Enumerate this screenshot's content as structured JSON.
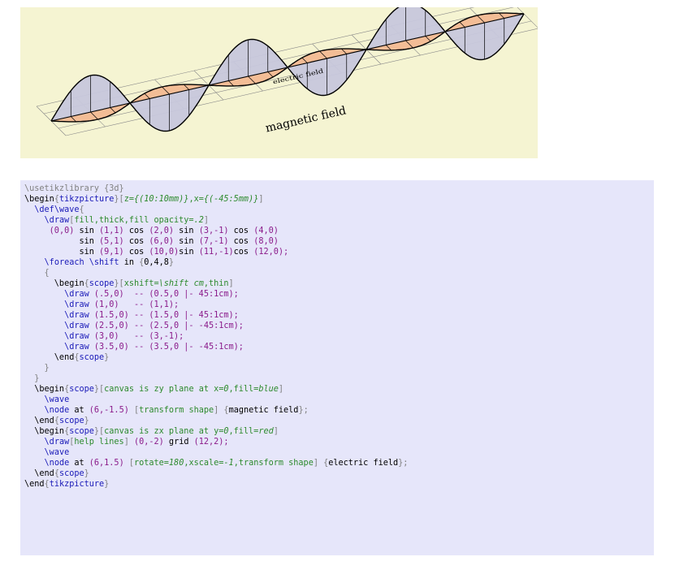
{
  "figure": {
    "labels": {
      "magnetic": "magnetic field",
      "electric": "electric field"
    },
    "colors": {
      "background": "#f5f4d2",
      "blue_fill": "#c7c7dc",
      "red_fill": "#f3bd96",
      "grid": "#888888",
      "outline": "#000000"
    }
  },
  "code": {
    "background": "#e6e6fa",
    "lines": [
      [
        [
          "gray",
          "\\usetikzlibrary {3d}"
        ]
      ],
      [
        [
          "plain",
          "\\begin"
        ],
        [
          "gray",
          "{"
        ],
        [
          "blue",
          "tikzpicture"
        ],
        [
          "gray",
          "}["
        ],
        [
          "green",
          "z="
        ],
        [
          "green-it",
          "{(10:10mm)}"
        ],
        [
          "green",
          ",x="
        ],
        [
          "green-it",
          "{(-45:5mm)}"
        ],
        [
          "gray",
          "]"
        ]
      ],
      [
        [
          "plain",
          "  "
        ],
        [
          "blue",
          "\\def\\wave"
        ],
        [
          "gray",
          "{"
        ]
      ],
      [
        [
          "plain",
          "    "
        ],
        [
          "blue",
          "\\draw"
        ],
        [
          "gray",
          "["
        ],
        [
          "green",
          "fill,thick,fill opacity="
        ],
        [
          "green-it",
          ".2"
        ],
        [
          "gray",
          "]"
        ]
      ],
      [
        [
          "plain",
          "     "
        ],
        [
          "purple",
          "(0,0)"
        ],
        [
          "plain",
          " sin "
        ],
        [
          "purple",
          "(1,1)"
        ],
        [
          "plain",
          " cos "
        ],
        [
          "purple",
          "(2,0)"
        ],
        [
          "plain",
          " sin "
        ],
        [
          "purple",
          "(3,-1)"
        ],
        [
          "plain",
          " cos "
        ],
        [
          "purple",
          "(4,0)"
        ]
      ],
      [
        [
          "plain",
          "           sin "
        ],
        [
          "purple",
          "(5,1)"
        ],
        [
          "plain",
          " cos "
        ],
        [
          "purple",
          "(6,0)"
        ],
        [
          "plain",
          " sin "
        ],
        [
          "purple",
          "(7,-1)"
        ],
        [
          "plain",
          " cos "
        ],
        [
          "purple",
          "(8,0)"
        ]
      ],
      [
        [
          "plain",
          "           sin "
        ],
        [
          "purple",
          "(9,1)"
        ],
        [
          "plain",
          " cos "
        ],
        [
          "purple",
          "(10,0)"
        ],
        [
          "plain",
          "sin "
        ],
        [
          "purple",
          "(11,-1)"
        ],
        [
          "plain",
          "cos "
        ],
        [
          "purple",
          "(12,0);"
        ]
      ],
      [
        [
          "plain",
          "    "
        ],
        [
          "blue",
          "\\foreach \\shift"
        ],
        [
          "plain",
          " in "
        ],
        [
          "gray",
          "{"
        ],
        [
          "plain",
          "0,4,8"
        ],
        [
          "gray",
          "}"
        ]
      ],
      [
        [
          "gray",
          "    {"
        ]
      ],
      [
        [
          "plain",
          "      \\begin"
        ],
        [
          "gray",
          "{"
        ],
        [
          "blue",
          "scope"
        ],
        [
          "gray",
          "}["
        ],
        [
          "green",
          "xshift="
        ],
        [
          "green-it",
          "\\shift cm"
        ],
        [
          "green",
          ",thin"
        ],
        [
          "gray",
          "]"
        ]
      ],
      [
        [
          "plain",
          "        "
        ],
        [
          "blue",
          "\\draw"
        ],
        [
          "purple",
          " (.5,0)  -- (0.5,0 |- 45:1cm);"
        ]
      ],
      [
        [
          "plain",
          "        "
        ],
        [
          "blue",
          "\\draw"
        ],
        [
          "purple",
          " (1,0)   -- (1,1);"
        ]
      ],
      [
        [
          "plain",
          "        "
        ],
        [
          "blue",
          "\\draw"
        ],
        [
          "purple",
          " (1.5,0) -- (1.5,0 |- 45:1cm);"
        ]
      ],
      [
        [
          "plain",
          "        "
        ],
        [
          "blue",
          "\\draw"
        ],
        [
          "purple",
          " (2.5,0) -- (2.5,0 |- -45:1cm);"
        ]
      ],
      [
        [
          "plain",
          "        "
        ],
        [
          "blue",
          "\\draw"
        ],
        [
          "purple",
          " (3,0)   -- (3,-1);"
        ]
      ],
      [
        [
          "plain",
          "        "
        ],
        [
          "blue",
          "\\draw"
        ],
        [
          "purple",
          " (3.5,0) -- (3.5,0 |- -45:1cm);"
        ]
      ],
      [
        [
          "plain",
          "      \\end"
        ],
        [
          "gray",
          "{"
        ],
        [
          "blue",
          "scope"
        ],
        [
          "gray",
          "}"
        ]
      ],
      [
        [
          "gray",
          "    }"
        ]
      ],
      [
        [
          "gray",
          "  }"
        ]
      ],
      [
        [
          "plain",
          "  \\begin"
        ],
        [
          "gray",
          "{"
        ],
        [
          "blue",
          "scope"
        ],
        [
          "gray",
          "}["
        ],
        [
          "green",
          "canvas is zy plane at x="
        ],
        [
          "green-it",
          "0"
        ],
        [
          "green",
          ",fill="
        ],
        [
          "green-it",
          "blue"
        ],
        [
          "gray",
          "]"
        ]
      ],
      [
        [
          "plain",
          "    "
        ],
        [
          "blue",
          "\\wave"
        ]
      ],
      [
        [
          "plain",
          "    "
        ],
        [
          "blue",
          "\\node"
        ],
        [
          "plain",
          " at "
        ],
        [
          "purple",
          "(6,-1.5)"
        ],
        [
          "plain",
          " "
        ],
        [
          "gray",
          "["
        ],
        [
          "green",
          "transform shape"
        ],
        [
          "gray",
          "]"
        ],
        [
          "plain",
          " "
        ],
        [
          "gray",
          "{"
        ],
        [
          "plain",
          "magnetic field"
        ],
        [
          "gray",
          "};"
        ]
      ],
      [
        [
          "plain",
          "  \\end"
        ],
        [
          "gray",
          "{"
        ],
        [
          "blue",
          "scope"
        ],
        [
          "gray",
          "}"
        ]
      ],
      [
        [
          "plain",
          "  \\begin"
        ],
        [
          "gray",
          "{"
        ],
        [
          "blue",
          "scope"
        ],
        [
          "gray",
          "}["
        ],
        [
          "green",
          "canvas is zx plane at y="
        ],
        [
          "green-it",
          "0"
        ],
        [
          "green",
          ",fill="
        ],
        [
          "green-it",
          "red"
        ],
        [
          "gray",
          "]"
        ]
      ],
      [
        [
          "plain",
          "    "
        ],
        [
          "blue",
          "\\draw"
        ],
        [
          "gray",
          "["
        ],
        [
          "green",
          "help lines"
        ],
        [
          "gray",
          "]"
        ],
        [
          "plain",
          " "
        ],
        [
          "purple",
          "(0,-2)"
        ],
        [
          "plain",
          " grid "
        ],
        [
          "purple",
          "(12,2);"
        ]
      ],
      [
        [
          "plain",
          "    "
        ],
        [
          "blue",
          "\\wave"
        ]
      ],
      [
        [
          "plain",
          "    "
        ],
        [
          "blue",
          "\\node"
        ],
        [
          "plain",
          " at "
        ],
        [
          "purple",
          "(6,1.5)"
        ],
        [
          "plain",
          " "
        ],
        [
          "gray",
          "["
        ],
        [
          "green",
          "rotate="
        ],
        [
          "green-it",
          "180"
        ],
        [
          "green",
          ",xscale="
        ],
        [
          "green-it",
          "-1"
        ],
        [
          "green",
          ",transform shape"
        ],
        [
          "gray",
          "]"
        ],
        [
          "plain",
          " "
        ],
        [
          "gray",
          "{"
        ],
        [
          "plain",
          "electric field"
        ],
        [
          "gray",
          "};"
        ]
      ],
      [
        [
          "plain",
          "  \\end"
        ],
        [
          "gray",
          "{"
        ],
        [
          "blue",
          "scope"
        ],
        [
          "gray",
          "}"
        ]
      ],
      [
        [
          "plain",
          "\\end"
        ],
        [
          "gray",
          "{"
        ],
        [
          "blue",
          "tikzpicture"
        ],
        [
          "gray",
          "}"
        ]
      ]
    ]
  }
}
